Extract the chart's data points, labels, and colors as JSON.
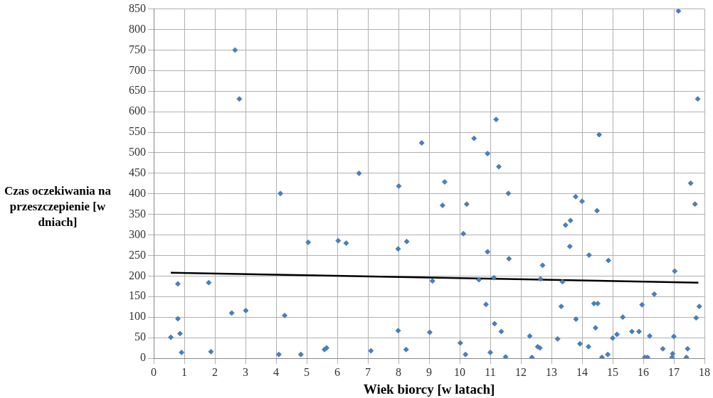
{
  "chart_data": {
    "type": "scatter",
    "xlabel": "Wiek biorcy [w latach]",
    "ylabel": "Czas oczekiwania na przeszczepienie [w dniach]",
    "xlim": [
      0,
      18
    ],
    "xticks": [
      0,
      1,
      2,
      3,
      4,
      5,
      6,
      7,
      8,
      9,
      10,
      11,
      12,
      13,
      14,
      15,
      16,
      17,
      18
    ],
    "ylim": [
      0,
      850
    ],
    "yticks": [
      0,
      50,
      100,
      150,
      200,
      250,
      300,
      350,
      400,
      450,
      500,
      550,
      600,
      650,
      700,
      750,
      800,
      850
    ],
    "grid": true,
    "legend": false,
    "marker": "diamond",
    "series": [
      {
        "color": "#4a7ebb",
        "x": [
          0.56,
          0.79,
          0.79,
          0.86,
          0.91,
          1.8,
          1.87,
          2.55,
          2.66,
          2.8,
          3.01,
          4.09,
          4.14,
          4.28,
          4.81,
          5.05,
          5.58,
          5.65,
          6.03,
          6.29,
          6.71,
          7.1,
          7.99,
          7.99,
          8.01,
          8.25,
          8.27,
          8.76,
          9.02,
          9.11,
          9.44,
          9.51,
          10.02,
          10.12,
          10.19,
          10.23,
          10.47,
          10.63,
          10.86,
          10.91,
          10.91,
          11.0,
          11.12,
          11.14,
          11.19,
          11.28,
          11.36,
          11.5,
          11.59,
          11.61,
          12.29,
          12.36,
          12.55,
          12.62,
          12.64,
          12.71,
          13.2,
          13.32,
          13.36,
          13.46,
          13.6,
          13.62,
          13.79,
          13.8,
          13.93,
          14.0,
          14.21,
          14.23,
          14.39,
          14.44,
          14.49,
          14.51,
          14.56,
          14.65,
          14.84,
          14.86,
          15.0,
          15.14,
          15.33,
          15.63,
          15.86,
          15.96,
          16.05,
          16.14,
          16.21,
          16.36,
          16.64,
          16.94,
          16.96,
          17.0,
          17.03,
          17.15,
          17.41,
          17.45,
          17.55,
          17.73,
          17.69,
          17.78,
          17.83
        ],
        "values": [
          51,
          181,
          96,
          60,
          14,
          184,
          16,
          110,
          750,
          631,
          116,
          9,
          401,
          104,
          9,
          282,
          21,
          25,
          286,
          280,
          450,
          18,
          67,
          266,
          419,
          21,
          284,
          524,
          63,
          188,
          372,
          429,
          37,
          303,
          9,
          375,
          535,
          191,
          131,
          259,
          498,
          14,
          196,
          84,
          581,
          466,
          65,
          3,
          401,
          242,
          54,
          2,
          28,
          25,
          193,
          226,
          47,
          126,
          186,
          324,
          272,
          335,
          393,
          95,
          35,
          382,
          28,
          251,
          133,
          74,
          359,
          133,
          544,
          2,
          9,
          238,
          49,
          58,
          100,
          65,
          65,
          130,
          2,
          2,
          54,
          156,
          23,
          2,
          11,
          53,
          212,
          845,
          2,
          23,
          426,
          98,
          375,
          631,
          126
        ]
      },
      {
        "type": "line",
        "color": "#000000",
        "x": [
          0.56,
          17.8
        ],
        "values": [
          208,
          184
        ],
        "marker": "none",
        "line_style": "solid"
      }
    ]
  }
}
